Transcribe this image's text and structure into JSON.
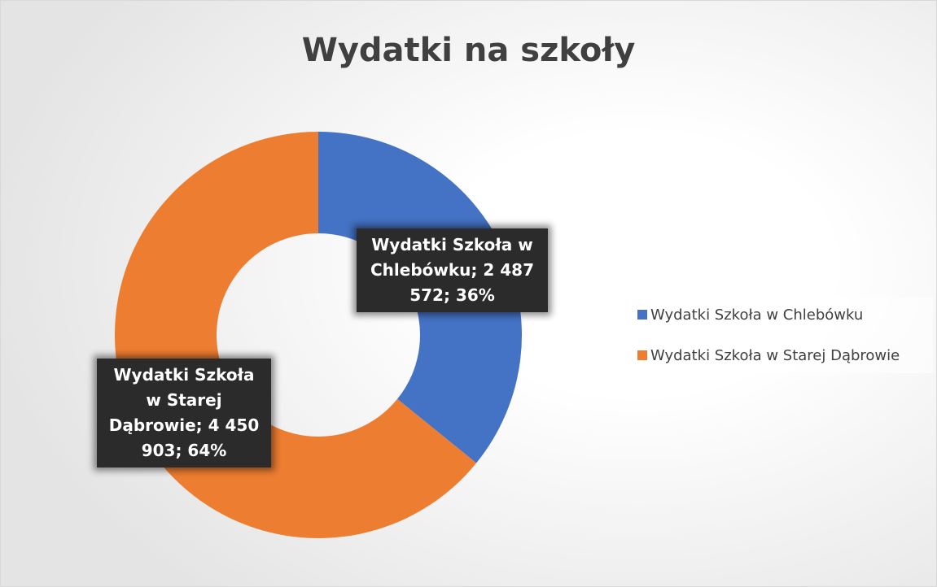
{
  "chart_data": {
    "type": "donut",
    "title": "Wydatki na szkoły",
    "categories": [
      "Wydatki Szkoła w Chlebówku",
      "Wydatki Szkoła w Starej Dąbrowie"
    ],
    "values": [
      2487572,
      4450903
    ],
    "value_labels": [
      "Wydatki Szkoła w Chlebówku; 2 487 572; 36%",
      "Wydatki Szkoła w Starej Dąbrowie; 4 450 903; 64%"
    ],
    "colors": [
      "#4472c4",
      "#ed7d31"
    ],
    "legend": "right"
  }
}
